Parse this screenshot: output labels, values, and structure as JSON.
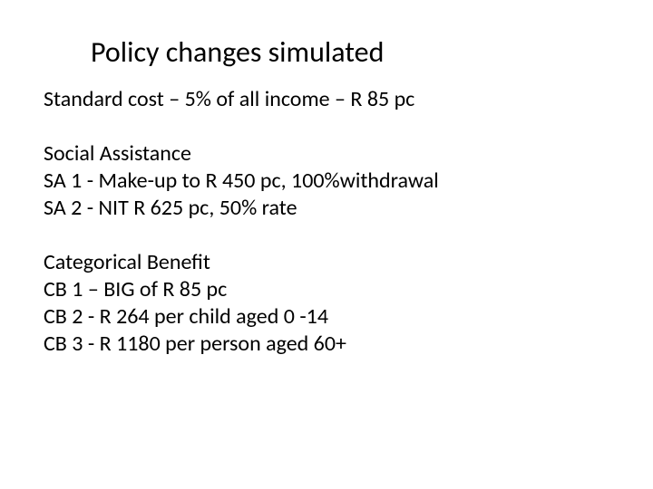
{
  "title": "Policy changes simulated",
  "standard_cost": "Standard cost – 5% of all income – R 85 pc",
  "sa_header": "Social Assistance",
  "sa1": "SA 1 - Make-up to R 450 pc, 100%withdrawal",
  "sa2": "SA 2 - NIT R 625 pc, 50% rate",
  "cb_header": "Categorical Benefit",
  "cb1": "CB 1 – BIG of R 85 pc",
  "cb2": "CB 2 - R 264 per child aged 0 -14",
  "cb3": "CB 3 - R 1180 per person aged 60+",
  "colors": {
    "background": "#ffffff",
    "text": "#000000"
  },
  "typography": {
    "title_fontsize": 32,
    "body_fontsize": 24,
    "font_family": "Calibri"
  }
}
